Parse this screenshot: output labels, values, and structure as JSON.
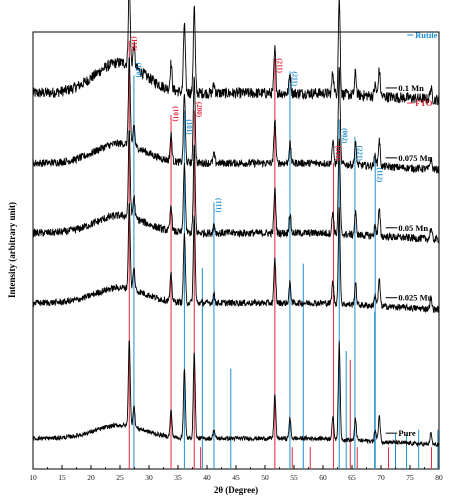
{
  "chart_data": {
    "type": "line",
    "title": "",
    "xlabel": "2θ (Degree)",
    "ylabel": "Intensity (arbitrary unit)",
    "xlim": [
      10,
      80
    ],
    "x_ticks": [
      10,
      15,
      20,
      25,
      30,
      35,
      40,
      45,
      50,
      55,
      60,
      65,
      70,
      75,
      80
    ],
    "legend": {
      "placement": "top-right",
      "entries": [
        {
          "name": "Rutile",
          "color": "#1f8fd0"
        },
        {
          "name": "FTO",
          "color": "#e8243c"
        }
      ]
    },
    "colors": {
      "rutile": "#1f8fd0",
      "fto": "#e8243c",
      "pattern": "#000000"
    },
    "series": [
      {
        "name": "0.1 Mn",
        "baseline": 0.86,
        "hump": 0.07,
        "noise": 0.05
      },
      {
        "name": "0.075 Mn",
        "baseline": 0.7,
        "hump": 0.045,
        "noise": 0.035
      },
      {
        "name": "0.05  Mn",
        "baseline": 0.54,
        "hump": 0.04,
        "noise": 0.035
      },
      {
        "name": "0.025 Mn",
        "baseline": 0.38,
        "hump": 0.035,
        "noise": 0.03
      },
      {
        "name": "Pure",
        "baseline": 0.07,
        "hump": 0.03,
        "noise": 0.02
      }
    ],
    "peaks": [
      {
        "x": 26.6,
        "h": 0.2
      },
      {
        "x": 27.4,
        "h": 0.05
      },
      {
        "x": 33.8,
        "h": 0.06
      },
      {
        "x": 36.1,
        "h": 0.16
      },
      {
        "x": 37.8,
        "h": 0.2
      },
      {
        "x": 41.2,
        "h": 0.02
      },
      {
        "x": 51.7,
        "h": 0.1
      },
      {
        "x": 54.3,
        "h": 0.045
      },
      {
        "x": 61.7,
        "h": 0.05
      },
      {
        "x": 62.8,
        "h": 0.22
      },
      {
        "x": 65.6,
        "h": 0.05
      },
      {
        "x": 69.0,
        "h": 0.025
      },
      {
        "x": 69.7,
        "h": 0.06
      },
      {
        "x": 78.6,
        "h": 0.025
      }
    ],
    "reference_lines": {
      "fto": [
        {
          "x": 26.6,
          "top": 0.98
        },
        {
          "x": 33.8,
          "top": 0.81
        },
        {
          "x": 37.8,
          "top": 0.82
        },
        {
          "x": 51.7,
          "top": 0.94
        },
        {
          "x": 61.8,
          "top": 0.7
        },
        {
          "x": 54.7,
          "top": 0.05
        },
        {
          "x": 57.8,
          "top": 0.05
        },
        {
          "x": 64.7,
          "top": 0.25
        },
        {
          "x": 65.9,
          "top": 0.05
        },
        {
          "x": 71.3,
          "top": 0.05
        },
        {
          "x": 78.7,
          "top": 0.05
        },
        {
          "x": 38.9,
          "top": 0.05
        }
      ],
      "rutile": [
        {
          "x": 27.4,
          "top": 0.9
        },
        {
          "x": 36.1,
          "top": 0.82
        },
        {
          "x": 41.2,
          "top": 0.61
        },
        {
          "x": 54.3,
          "top": 0.91
        },
        {
          "x": 62.8,
          "top": 0.8
        },
        {
          "x": 65.5,
          "top": 0.76
        },
        {
          "x": 69.0,
          "top": 0.72
        },
        {
          "x": 39.2,
          "top": 0.46
        },
        {
          "x": 44.1,
          "top": 0.23
        },
        {
          "x": 56.6,
          "top": 0.47
        },
        {
          "x": 64.0,
          "top": 0.27
        },
        {
          "x": 68.9,
          "top": 0.36
        },
        {
          "x": 72.5,
          "top": 0.08
        },
        {
          "x": 74.4,
          "top": 0.08
        },
        {
          "x": 76.5,
          "top": 0.09
        },
        {
          "x": 79.8,
          "top": 0.09
        },
        {
          "x": 82.3,
          "top": 0.09
        }
      ]
    },
    "peak_labels": [
      {
        "text": "(110)",
        "x": 26.6,
        "y": 0.99,
        "color": "#e8243c"
      },
      {
        "text": "(110)",
        "x": 27.4,
        "y": 0.93,
        "color": "#1f8fd0"
      },
      {
        "text": "(101)",
        "x": 33.8,
        "y": 0.83,
        "color": "#e8243c"
      },
      {
        "text": "(101)",
        "x": 36.1,
        "y": 0.8,
        "color": "#1f8fd0"
      },
      {
        "text": "(200)",
        "x": 37.8,
        "y": 0.84,
        "color": "#e8243c"
      },
      {
        "text": "(111)",
        "x": 41.2,
        "y": 0.62,
        "color": "#1f8fd0"
      },
      {
        "text": "(211)",
        "x": 51.7,
        "y": 0.94,
        "color": "#e8243c"
      },
      {
        "text": "(211)",
        "x": 54.3,
        "y": 0.91,
        "color": "#1f8fd0"
      },
      {
        "text": "(310)",
        "x": 61.8,
        "y": 0.74,
        "color": "#e8243c"
      },
      {
        "text": "(002)",
        "x": 62.9,
        "y": 0.78,
        "color": "#1f8fd0"
      },
      {
        "text": "(221)",
        "x": 65.5,
        "y": 0.74,
        "color": "#1f8fd0"
      },
      {
        "text": "(112)",
        "x": 69.0,
        "y": 0.69,
        "color": "#1f8fd0"
      }
    ]
  }
}
